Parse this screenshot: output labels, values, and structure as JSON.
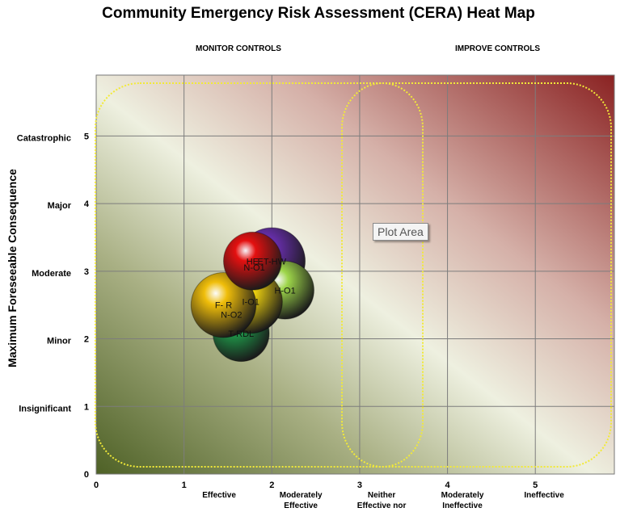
{
  "chart_data": {
    "type": "bubble",
    "title": "Community Emergency Risk Assessment (CERA) Heat Map",
    "ylabel": "Maximum Foreseeable Consequence",
    "xlim": [
      0,
      5.9
    ],
    "ylim": [
      0,
      5.9
    ],
    "x_ticks": [
      "0",
      "1",
      "2",
      "3",
      "4",
      "5"
    ],
    "y_ticks": [
      "0",
      "1",
      "2",
      "3",
      "4",
      "5"
    ],
    "y_categories": [
      {
        "y": 1,
        "label": "Insignificant"
      },
      {
        "y": 2,
        "label": "Minor"
      },
      {
        "y": 3,
        "label": "Moderate"
      },
      {
        "y": 4,
        "label": "Major"
      },
      {
        "y": 5,
        "label": "Catastrophic"
      }
    ],
    "x_categories": [
      {
        "x": 1.4,
        "lines": [
          "Effective"
        ]
      },
      {
        "x": 2.33,
        "lines": [
          "Moderately",
          "Effective"
        ]
      },
      {
        "x": 3.25,
        "lines": [
          "Neither",
          "Effective nor"
        ]
      },
      {
        "x": 4.17,
        "lines": [
          "Moderately",
          "Ineffective"
        ]
      },
      {
        "x": 5.1,
        "lines": [
          "Ineffective"
        ]
      }
    ],
    "zone_labels": [
      "MONITOR CONTROLS",
      "IMPROVE CONTROLS"
    ],
    "plot_area_label": "Plot Area",
    "grid": true,
    "bubbles": [
      {
        "x": 1.65,
        "y": 2.08,
        "r": 0.32,
        "color": "#1f9a4a",
        "label": "T-RDL"
      },
      {
        "x": 2.0,
        "y": 3.15,
        "r": 0.38,
        "color": "#6a2fb0",
        "label": "ET-HW"
      },
      {
        "x": 2.15,
        "y": 2.72,
        "r": 0.33,
        "color": "#9ed64a",
        "label": "H-O1"
      },
      {
        "x": 1.76,
        "y": 2.55,
        "r": 0.36,
        "color": "#f1d40f",
        "label": "I-O1"
      },
      {
        "x": 1.45,
        "y": 2.5,
        "r": 0.37,
        "color": "#f0be0a",
        "label": "F- R"
      },
      {
        "x": 1.78,
        "y": 3.15,
        "r": 0.33,
        "color": "#e41010",
        "label": "HE"
      },
      {
        "x": 1.8,
        "y": 3.06,
        "r": 0.0,
        "color": "#e41010",
        "label": "N-O1"
      },
      {
        "x": 1.54,
        "y": 2.36,
        "r": 0.0,
        "color": "#f0be0a",
        "label": "N-O2"
      }
    ]
  }
}
